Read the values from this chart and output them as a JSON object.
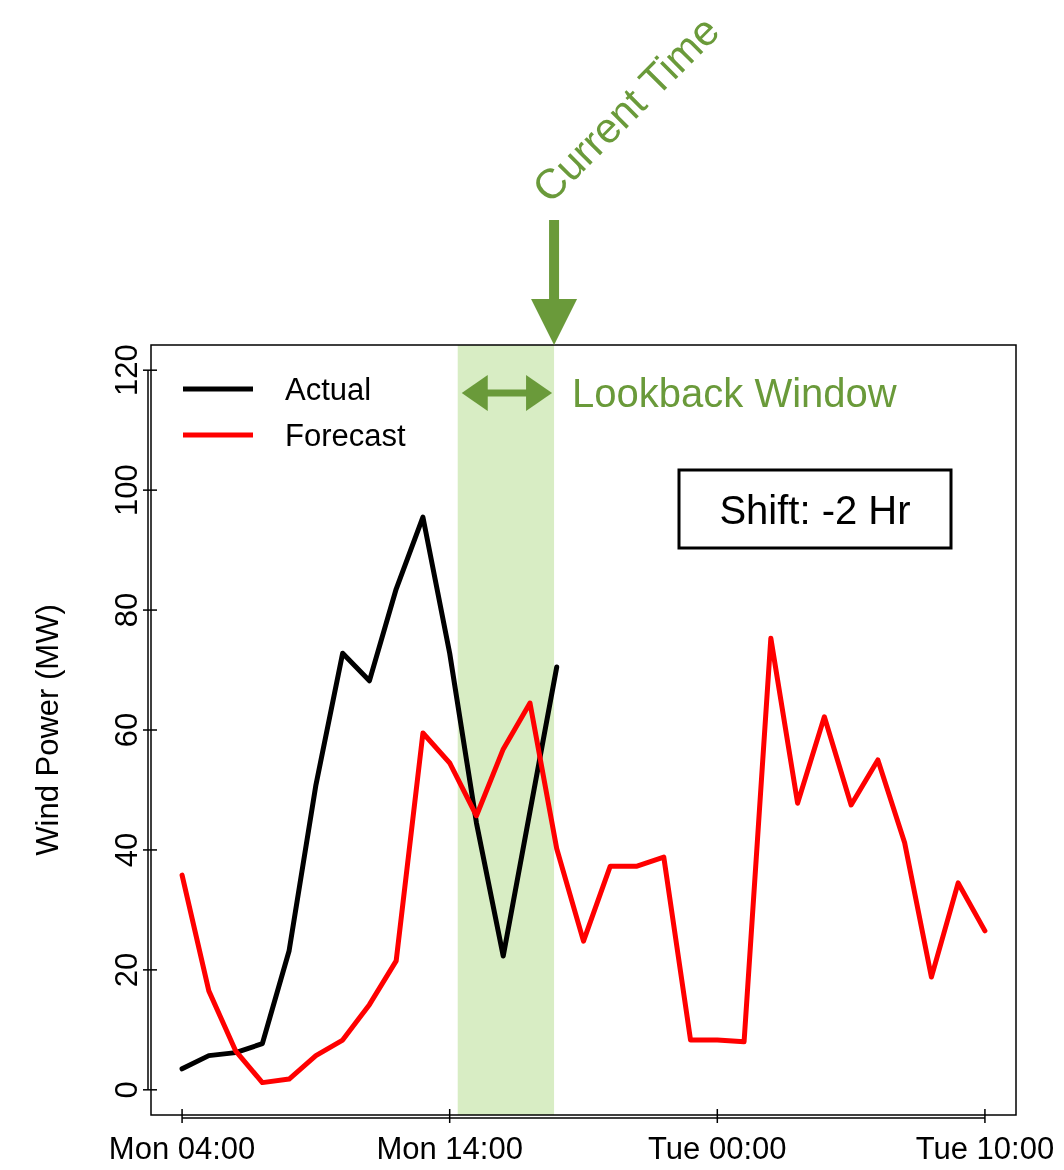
{
  "chart_data": {
    "type": "line",
    "ylabel": "Wind Power (MW)",
    "categories": [
      "Mon 04:00",
      null,
      null,
      null,
      null,
      null,
      null,
      null,
      null,
      null,
      "Mon 14:00",
      null,
      null,
      null,
      null,
      null,
      null,
      null,
      null,
      null,
      "Tue 00:00",
      null,
      null,
      null,
      null,
      null,
      null,
      null,
      null,
      null,
      "Tue 10:00"
    ],
    "ylim": [
      -4.2,
      124.2
    ],
    "yticks": [
      0,
      20,
      40,
      60,
      80,
      100,
      120
    ],
    "series": [
      {
        "name": "Actual",
        "color": "#000000",
        "values": [
          3.5,
          5.7,
          6.2,
          7.7,
          23.2,
          50.8,
          72.8,
          68.2,
          83.5,
          95.5,
          72.8,
          44.5,
          22.3,
          46.4,
          70.5,
          null,
          null,
          null,
          null,
          null,
          null,
          null,
          null,
          null,
          null,
          null,
          null,
          null,
          null,
          null,
          null
        ]
      },
      {
        "name": "Forecast",
        "color": "#ff0000",
        "values": [
          35.8,
          16.5,
          6.5,
          1.2,
          1.8,
          5.7,
          8.3,
          14.2,
          21.5,
          59.5,
          54.5,
          45.7,
          56.8,
          64.5,
          40.2,
          24.8,
          37.3,
          37.3,
          38.8,
          8.3,
          8.3,
          8,
          75.3,
          47.8,
          62.2,
          47.5,
          55,
          41.2,
          18.8,
          34.5,
          26.5
        ]
      }
    ],
    "annotations": [
      "Shift: -2 Hr",
      "Current Time",
      "Lookback Window"
    ],
    "legend": "top left",
    "marker": "none",
    "line_style": "solid"
  }
}
